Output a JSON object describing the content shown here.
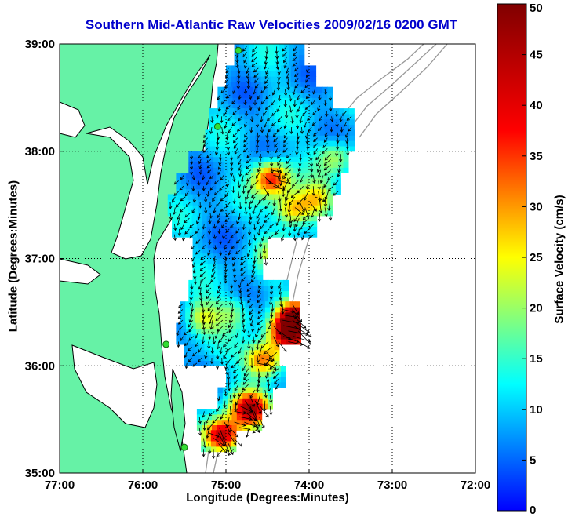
{
  "chart_data": {
    "type": "heatmap",
    "title": "Southern Mid-Atlantic Raw Velocities 2009/02/16 0200 GMT",
    "xlabel": "Longitude (Degrees:Minutes)",
    "ylabel": "Latitude (Degrees:Minutes)",
    "colorbar_label": "Surface Velocity (cm/s)",
    "x_range": [
      -77.0,
      -72.0
    ],
    "y_range": [
      35.0,
      39.0
    ],
    "x_ticks": [
      "77:00",
      "76:00",
      "75:00",
      "74:00",
      "73:00",
      "72:00"
    ],
    "y_ticks": [
      "39:00",
      "38:00",
      "37:00",
      "36:00",
      "35:00"
    ],
    "colorbar_ticks": [
      "0",
      "5",
      "10",
      "15",
      "20",
      "25",
      "30",
      "35",
      "40",
      "45",
      "50"
    ],
    "colorbar_range": [
      0,
      50
    ],
    "grid": true,
    "colors": {
      "land": "#66f2a6",
      "coast": "#000000",
      "isobath": "#999999",
      "grid": "#000000",
      "title": "#0000cc",
      "site_marker": "#33dd33"
    },
    "field_segments": [
      {
        "lat": 38.9,
        "lon": [
          -74.9,
          -74.1
        ]
      },
      {
        "lat": 38.7,
        "lon": [
          -75.0,
          -73.95
        ]
      },
      {
        "lat": 38.5,
        "lon": [
          -75.1,
          -73.75
        ]
      },
      {
        "lat": 38.3,
        "lon": [
          -75.2,
          -73.5
        ]
      },
      {
        "lat": 38.1,
        "lon": [
          -75.25,
          -73.5
        ]
      },
      {
        "lat": 37.9,
        "lon": [
          -75.45,
          -73.55
        ]
      },
      {
        "lat": 37.7,
        "lon": [
          -75.6,
          -73.65
        ]
      },
      {
        "lat": 37.5,
        "lon": [
          -75.7,
          -73.75
        ]
      },
      {
        "lat": 37.3,
        "lon": [
          -75.65,
          -73.95
        ]
      },
      {
        "lat": 37.1,
        "lon": [
          -75.4,
          -74.55
        ]
      },
      {
        "lat": 36.9,
        "lon": [
          -75.4,
          -74.6
        ]
      },
      {
        "lat": 36.7,
        "lon": [
          -75.45,
          -74.3
        ]
      },
      {
        "lat": 36.5,
        "lon": [
          -75.55,
          -74.15
        ]
      },
      {
        "lat": 36.3,
        "lon": [
          -75.6,
          -74.15
        ]
      },
      {
        "lat": 36.1,
        "lon": [
          -75.5,
          -74.4
        ]
      },
      {
        "lat": 35.9,
        "lon": [
          -75.0,
          -74.3
        ]
      },
      {
        "lat": 35.7,
        "lon": [
          -75.1,
          -74.45
        ]
      },
      {
        "lat": 35.5,
        "lon": [
          -75.35,
          -74.6
        ]
      },
      {
        "lat": 35.3,
        "lon": [
          -75.3,
          -74.9
        ]
      }
    ],
    "velocity_hotspots": [
      {
        "lon": -74.45,
        "lat": 37.75,
        "speed": 38
      },
      {
        "lon": -74.2,
        "lat": 37.45,
        "speed": 30
      },
      {
        "lon": -73.7,
        "lat": 37.95,
        "speed": 22
      },
      {
        "lon": -74.25,
        "lat": 36.3,
        "speed": 42
      },
      {
        "lon": -74.15,
        "lat": 36.45,
        "speed": 46
      },
      {
        "lon": -74.55,
        "lat": 36.05,
        "speed": 36
      },
      {
        "lon": -74.7,
        "lat": 35.6,
        "speed": 44
      },
      {
        "lon": -75.05,
        "lat": 35.35,
        "speed": 48
      },
      {
        "lon": -75.3,
        "lat": 36.45,
        "speed": 24
      },
      {
        "lon": -74.9,
        "lat": 36.5,
        "speed": 20
      },
      {
        "lon": -74.35,
        "lat": 37.05,
        "speed": 26
      },
      {
        "lon": -73.9,
        "lat": 37.55,
        "speed": 24
      }
    ],
    "base_speed": 9,
    "flow_direction_deg": 200,
    "coastal_sites": [
      {
        "lon": -74.85,
        "lat": 38.94
      },
      {
        "lon": -75.1,
        "lat": 38.23
      },
      {
        "lon": -75.72,
        "lat": 36.2
      },
      {
        "lon": -75.5,
        "lat": 35.24
      }
    ]
  }
}
